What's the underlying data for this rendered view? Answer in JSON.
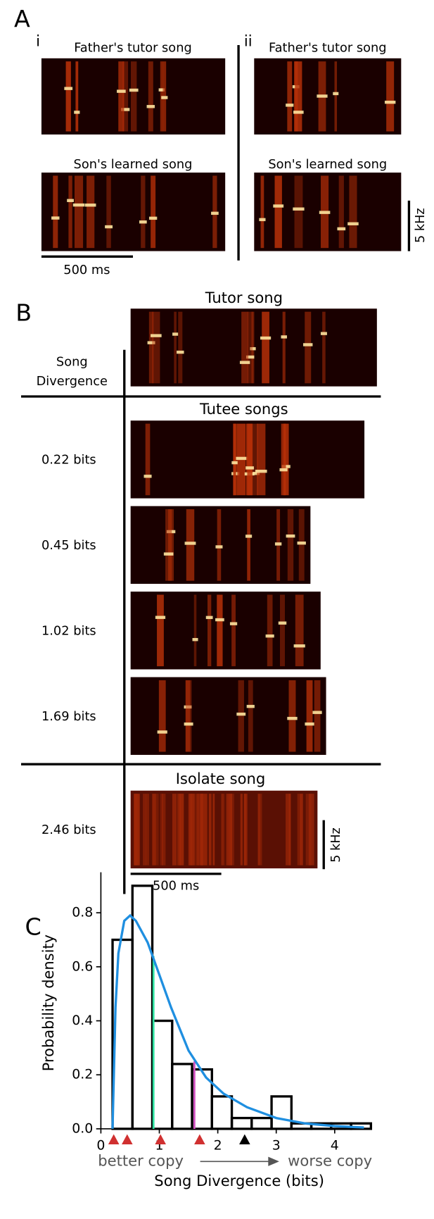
{
  "panel_a": {
    "label": "A",
    "i": {
      "label": "i",
      "tutor_title": "Father's tutor song",
      "son_title": "Son's learned song",
      "time_scale": "500 ms"
    },
    "ii": {
      "label": "ii",
      "tutor_title": "Father's tutor song",
      "son_title": "Son's learned song",
      "freq_scale": "5 kHz"
    }
  },
  "panel_b": {
    "label": "B",
    "tutor_title": "Tutor song",
    "row_header": [
      "Song",
      "Divergence"
    ],
    "tutee_title": "Tutee songs",
    "tutee_divergences": [
      "0.22 bits",
      "0.45 bits",
      "1.02 bits",
      "1.69 bits"
    ],
    "isolate_title": "Isolate song",
    "isolate_divergence": "2.46 bits",
    "time_scale": "500 ms",
    "freq_scale": "5 kHz"
  },
  "chart_data": {
    "type": "histogram",
    "panel_label": "C",
    "xlabel": "Song Divergence (bits)",
    "ylabel": "Probability density",
    "bins": [
      0.2,
      0.54,
      0.88,
      1.22,
      1.56,
      1.9,
      2.24,
      2.58,
      2.92,
      3.26,
      3.6,
      3.94,
      4.28,
      4.62
    ],
    "values": [
      0.7,
      0.9,
      0.4,
      0.24,
      0.22,
      0.12,
      0.04,
      0.04,
      0.12,
      0.02,
      0.02,
      0.02,
      0.02
    ],
    "color": "#000000",
    "curve": {
      "x": [
        0.2,
        0.25,
        0.3,
        0.4,
        0.5,
        0.6,
        0.8,
        1.0,
        1.2,
        1.5,
        1.8,
        2.1,
        2.5,
        3.0,
        3.5,
        4.0,
        4.5
      ],
      "values": [
        0,
        0.45,
        0.65,
        0.77,
        0.79,
        0.77,
        0.69,
        0.57,
        0.45,
        0.29,
        0.19,
        0.13,
        0.08,
        0.04,
        0.02,
        0.01,
        0.005
      ],
      "color": "#1f8fe0"
    },
    "vlines": [
      {
        "x": 0.9,
        "top": 0.64,
        "color": "#2de0a0"
      },
      {
        "x": 1.6,
        "top": 0.25,
        "color": "#d050c0"
      }
    ],
    "markers": {
      "x": [
        0.22,
        0.45,
        1.02,
        1.69,
        2.46
      ],
      "colors": [
        "#d03030",
        "#d03030",
        "#d03030",
        "#d03030",
        "#000000"
      ]
    },
    "annotation": {
      "left": "better copy",
      "right": "worse copy"
    },
    "xlim": [
      0,
      4.6
    ],
    "ylim": [
      0,
      0.95
    ],
    "xticks": [
      0,
      1,
      2,
      3,
      4
    ],
    "yticks": [
      {
        "value": 0,
        "label": "0.0"
      },
      {
        "value": 0.2,
        "label": "0.2"
      },
      {
        "value": 0.4,
        "label": "0.4"
      },
      {
        "value": 0.6,
        "label": "0.6"
      },
      {
        "value": 0.8,
        "label": "0.8"
      }
    ]
  }
}
